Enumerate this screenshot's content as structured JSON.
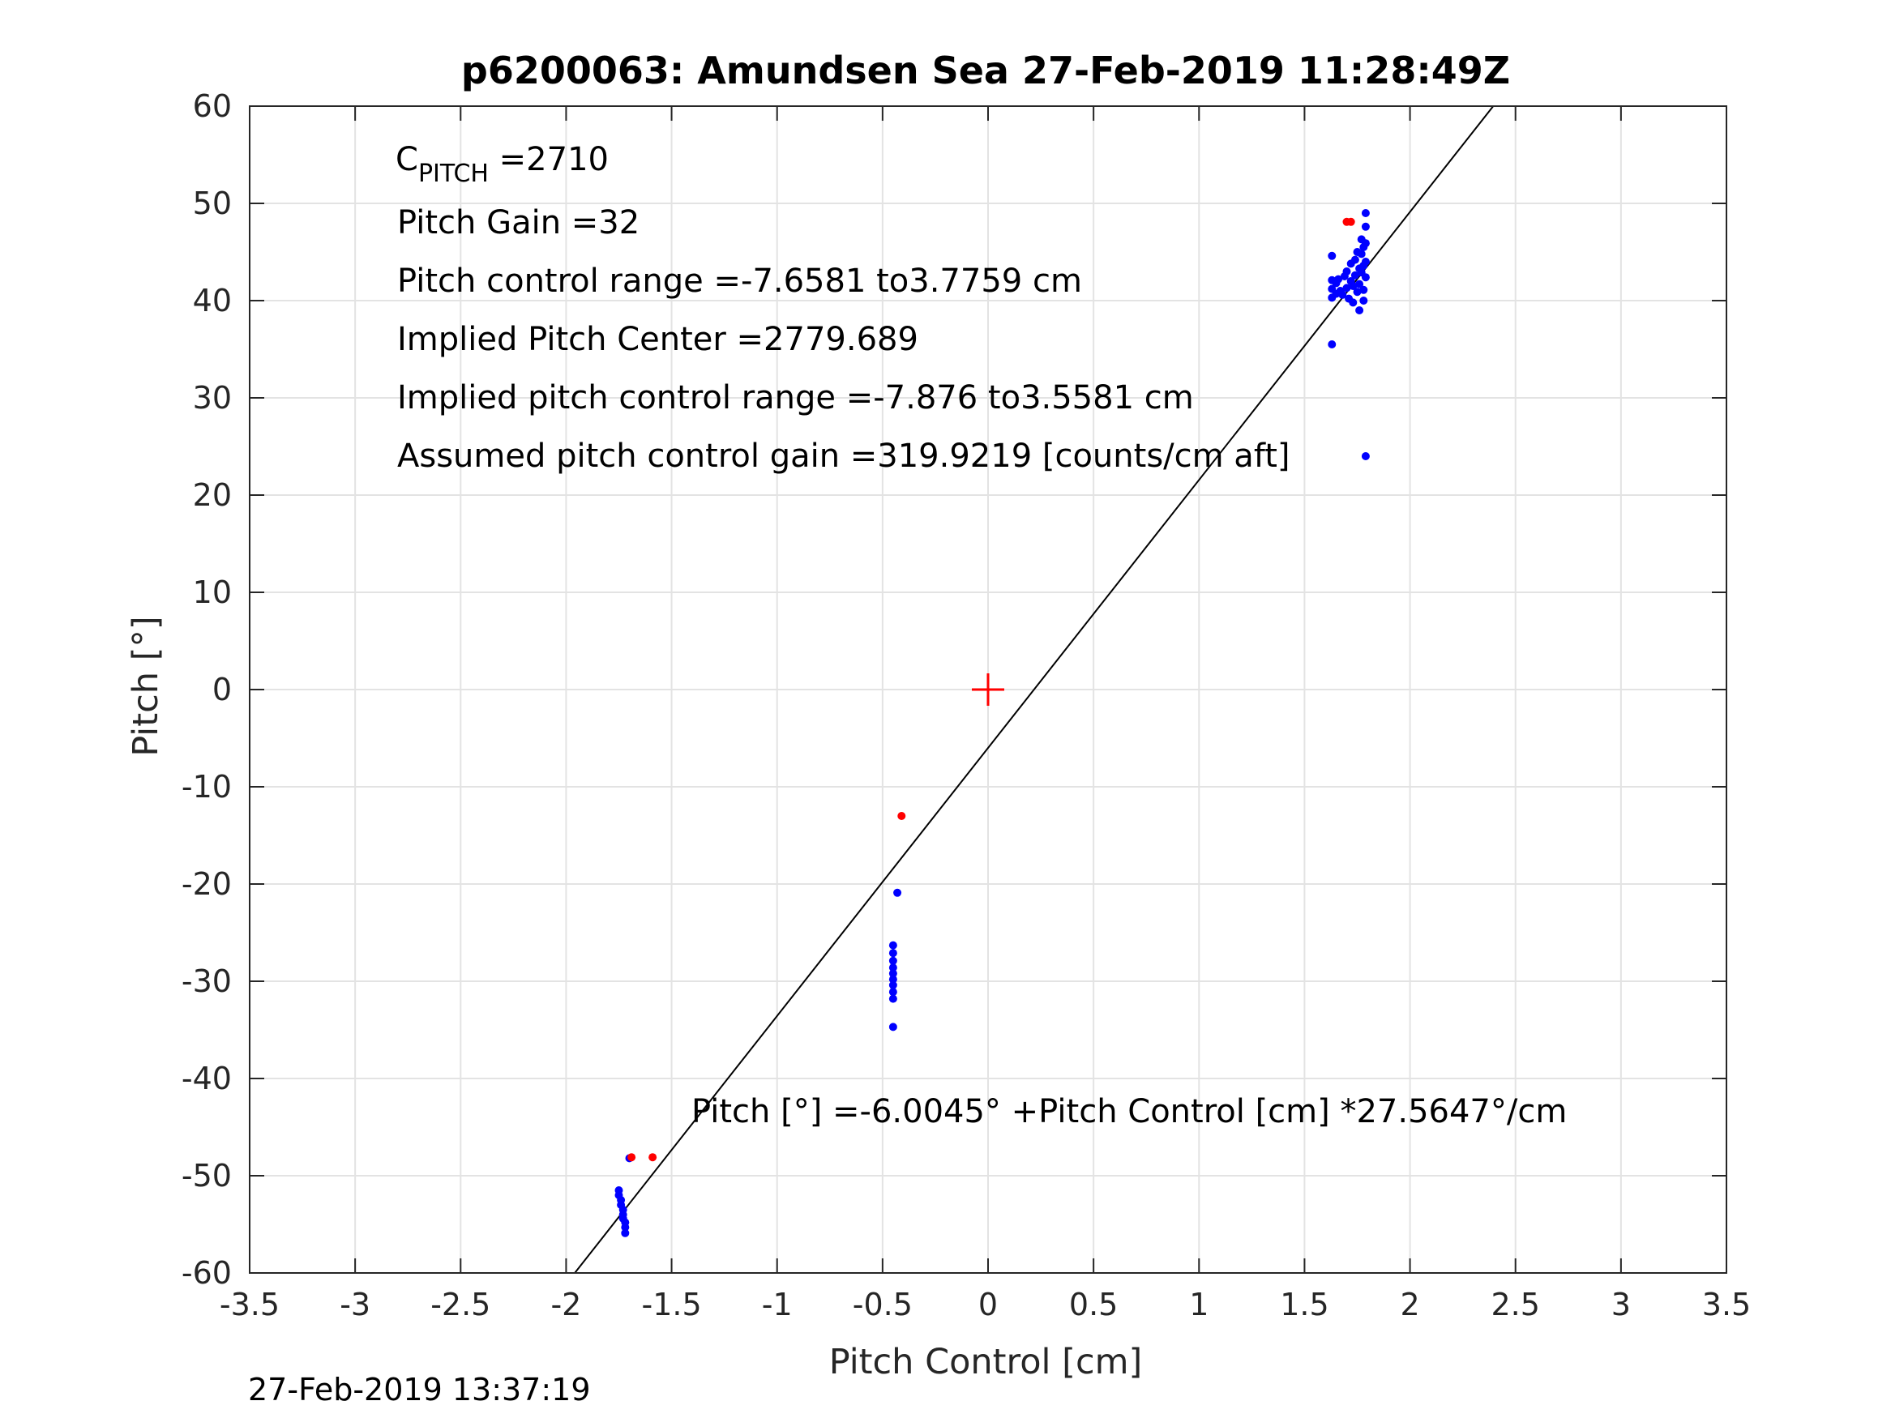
{
  "chart_data": {
    "type": "scatter",
    "title": "p6200063: Amundsen Sea 27-Feb-2019 11:28:49Z",
    "xlabel": "Pitch Control [cm]",
    "ylabel": "Pitch [°]",
    "xlim": [
      -3.5,
      3.5
    ],
    "ylim": [
      -60,
      60
    ],
    "grid": true,
    "x_ticks": [
      "-3.5",
      "-3",
      "-2.5",
      "-2",
      "-1.5",
      "-1",
      "-0.5",
      "0",
      "0.5",
      "1",
      "1.5",
      "2",
      "2.5",
      "3",
      "3.5"
    ],
    "y_ticks": [
      "60",
      "50",
      "40",
      "30",
      "20",
      "10",
      "0",
      "-10",
      "-20",
      "-30",
      "-40",
      "-50",
      "-60"
    ],
    "annotations": {
      "c_pitch_main": "C",
      "c_pitch_sub": "PITCH",
      "c_pitch_value": " =2710",
      "pitch_gain": "Pitch Gain =32",
      "pitch_control_range": "Pitch control range =-7.6581 to3.7759 cm",
      "implied_center": "Implied Pitch Center =2779.689",
      "implied_range": "Implied pitch control range =-7.876 to3.5581 cm",
      "assumed_gain": "Assumed pitch control gain =319.9219 [counts/cm aft]",
      "fit_equation": "Pitch [°] =-6.0045° +Pitch Control [cm] *27.5647°/cm"
    },
    "fit_line": {
      "intercept": -6.0045,
      "slope": 27.5647
    },
    "center_marker": {
      "x": 0,
      "y": 0,
      "color": "#ff0000"
    },
    "series": [
      {
        "color": "#0000ff",
        "points": [
          [
            1.63,
            44.6
          ],
          [
            1.63,
            42.1
          ],
          [
            1.63,
            41.2
          ],
          [
            1.63,
            40.3
          ],
          [
            1.63,
            35.5
          ],
          [
            1.65,
            41.8
          ],
          [
            1.65,
            40.7
          ],
          [
            1.66,
            42.2
          ],
          [
            1.67,
            41.0
          ],
          [
            1.68,
            40.6
          ],
          [
            1.69,
            42.5
          ],
          [
            1.7,
            41.3
          ],
          [
            1.7,
            43.0
          ],
          [
            1.71,
            40.2
          ],
          [
            1.72,
            42.0
          ],
          [
            1.72,
            43.8
          ],
          [
            1.73,
            41.5
          ],
          [
            1.73,
            39.8
          ],
          [
            1.74,
            44.2
          ],
          [
            1.74,
            42.6
          ],
          [
            1.75,
            40.9
          ],
          [
            1.75,
            45.0
          ],
          [
            1.76,
            43.3
          ],
          [
            1.76,
            41.7
          ],
          [
            1.76,
            39.0
          ],
          [
            1.77,
            44.8
          ],
          [
            1.77,
            46.3
          ],
          [
            1.77,
            42.9
          ],
          [
            1.78,
            45.5
          ],
          [
            1.78,
            43.6
          ],
          [
            1.78,
            41.1
          ],
          [
            1.78,
            40.0
          ],
          [
            1.79,
            47.6
          ],
          [
            1.79,
            49.0
          ],
          [
            1.79,
            45.9
          ],
          [
            1.79,
            44.0
          ],
          [
            1.79,
            42.4
          ],
          [
            1.79,
            24.0
          ],
          [
            -0.43,
            -20.9
          ],
          [
            -0.45,
            -26.3
          ],
          [
            -0.45,
            -27.1
          ],
          [
            -0.45,
            -27.9
          ],
          [
            -0.45,
            -28.6
          ],
          [
            -0.45,
            -29.2
          ],
          [
            -0.45,
            -29.8
          ],
          [
            -0.45,
            -30.4
          ],
          [
            -0.45,
            -31.1
          ],
          [
            -0.45,
            -31.8
          ],
          [
            -0.45,
            -34.7
          ],
          [
            -1.7,
            -48.2
          ],
          [
            -1.75,
            -51.5
          ],
          [
            -1.75,
            -52.0
          ],
          [
            -1.74,
            -52.5
          ],
          [
            -1.74,
            -53.0
          ],
          [
            -1.73,
            -53.5
          ],
          [
            -1.73,
            -54.0
          ],
          [
            -1.73,
            -54.4
          ],
          [
            -1.72,
            -54.8
          ],
          [
            -1.72,
            -55.3
          ],
          [
            -1.72,
            -55.9
          ]
        ]
      },
      {
        "color": "#ff0000",
        "points": [
          [
            1.7,
            48.1
          ],
          [
            1.72,
            48.1
          ],
          [
            -0.41,
            -13.0
          ],
          [
            -1.69,
            -48.1
          ],
          [
            -1.59,
            -48.1
          ]
        ]
      }
    ]
  },
  "footer_timestamp": "27-Feb-2019 13:37:19"
}
